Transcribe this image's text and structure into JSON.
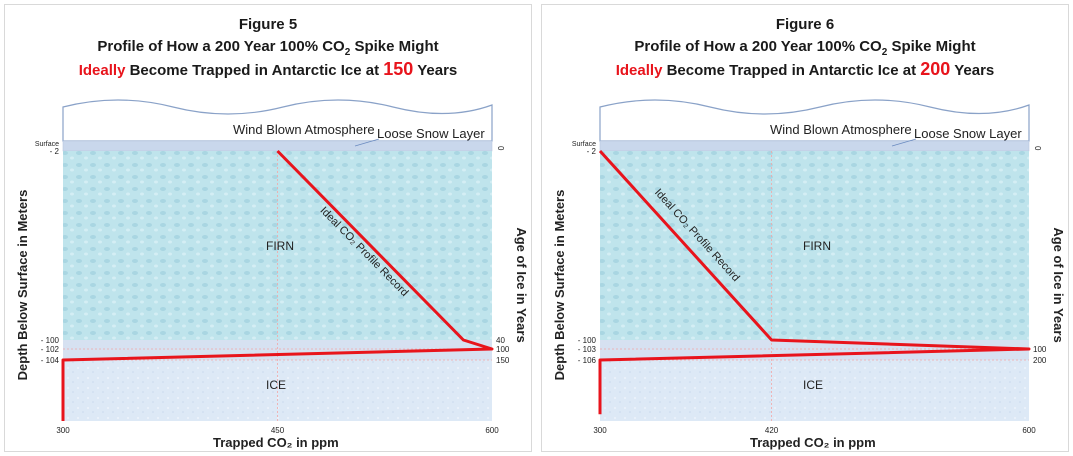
{
  "panels": [
    {
      "figure_label": "Figure 5",
      "subtitle_main": "Profile of How a 200 Year 100% CO",
      "subtitle_sub": "2",
      "subtitle_end": " Spike Might",
      "line3_ideally": "Ideally",
      "line3_mid": " Become Trapped in Antarctic Ice at ",
      "line3_value": "150",
      "line3_end": " Years",
      "atmosphere_label": "Wind Blown Atmosphere",
      "snow_label": "Loose Snow Layer",
      "firn_label": "FIRN",
      "ice_label": "ICE",
      "profile_label": "Ideal CO₂ Profile Record",
      "left_axis_title": "Depth Below Surface in Meters",
      "right_axis_title": "Age of Ice in Years",
      "x_axis_title": "Trapped CO₂ in ppm",
      "surface_label": "Surface",
      "depth_ticks": [
        "- 2",
        "- 100",
        "- 102",
        "- 104"
      ],
      "age_ticks": [
        "0",
        "40",
        "100",
        "150"
      ],
      "x_ticks": [
        "300",
        "450",
        "600"
      ],
      "profile_points": [
        [
          450,
          -2
        ],
        [
          580,
          -100
        ],
        [
          600,
          -102
        ],
        [
          300,
          -104
        ],
        [
          300,
          -122
        ]
      ]
    },
    {
      "figure_label": "Figure 6",
      "subtitle_main": "Profile of How a 200 Year 100% CO",
      "subtitle_sub": "2",
      "subtitle_end": " Spike Might",
      "line3_ideally": "Ideally",
      "line3_mid": " Become Trapped in Antarctic Ice at ",
      "line3_value": "200",
      "line3_end": " Years",
      "atmosphere_label": "Wind Blown Atmosphere",
      "snow_label": "Loose Snow Layer",
      "firn_label": "FIRN",
      "ice_label": "ICE",
      "profile_label": "Ideal CO₂ Profile Record",
      "left_axis_title": "Depth Below Surface in Meters",
      "right_axis_title": "Age of Ice in Years",
      "x_axis_title": "Trapped CO₂ in ppm",
      "surface_label": "Surface",
      "depth_ticks": [
        "- 2",
        "- 100",
        "- 103",
        "- 106"
      ],
      "age_ticks": [
        "0",
        "",
        "100",
        "200"
      ],
      "x_ticks": [
        "300",
        "420",
        "600"
      ],
      "profile_points": [
        [
          300,
          -2
        ],
        [
          420,
          -100
        ],
        [
          600,
          -103
        ],
        [
          300,
          -106
        ],
        [
          300,
          -122
        ]
      ]
    }
  ],
  "colors": {
    "firn": "#bfe4ec",
    "ice": "#dde9f6",
    "snow": "#c9d7ec",
    "profile": "#e8141c",
    "atmosphere_outline": "#8aa2c8"
  }
}
